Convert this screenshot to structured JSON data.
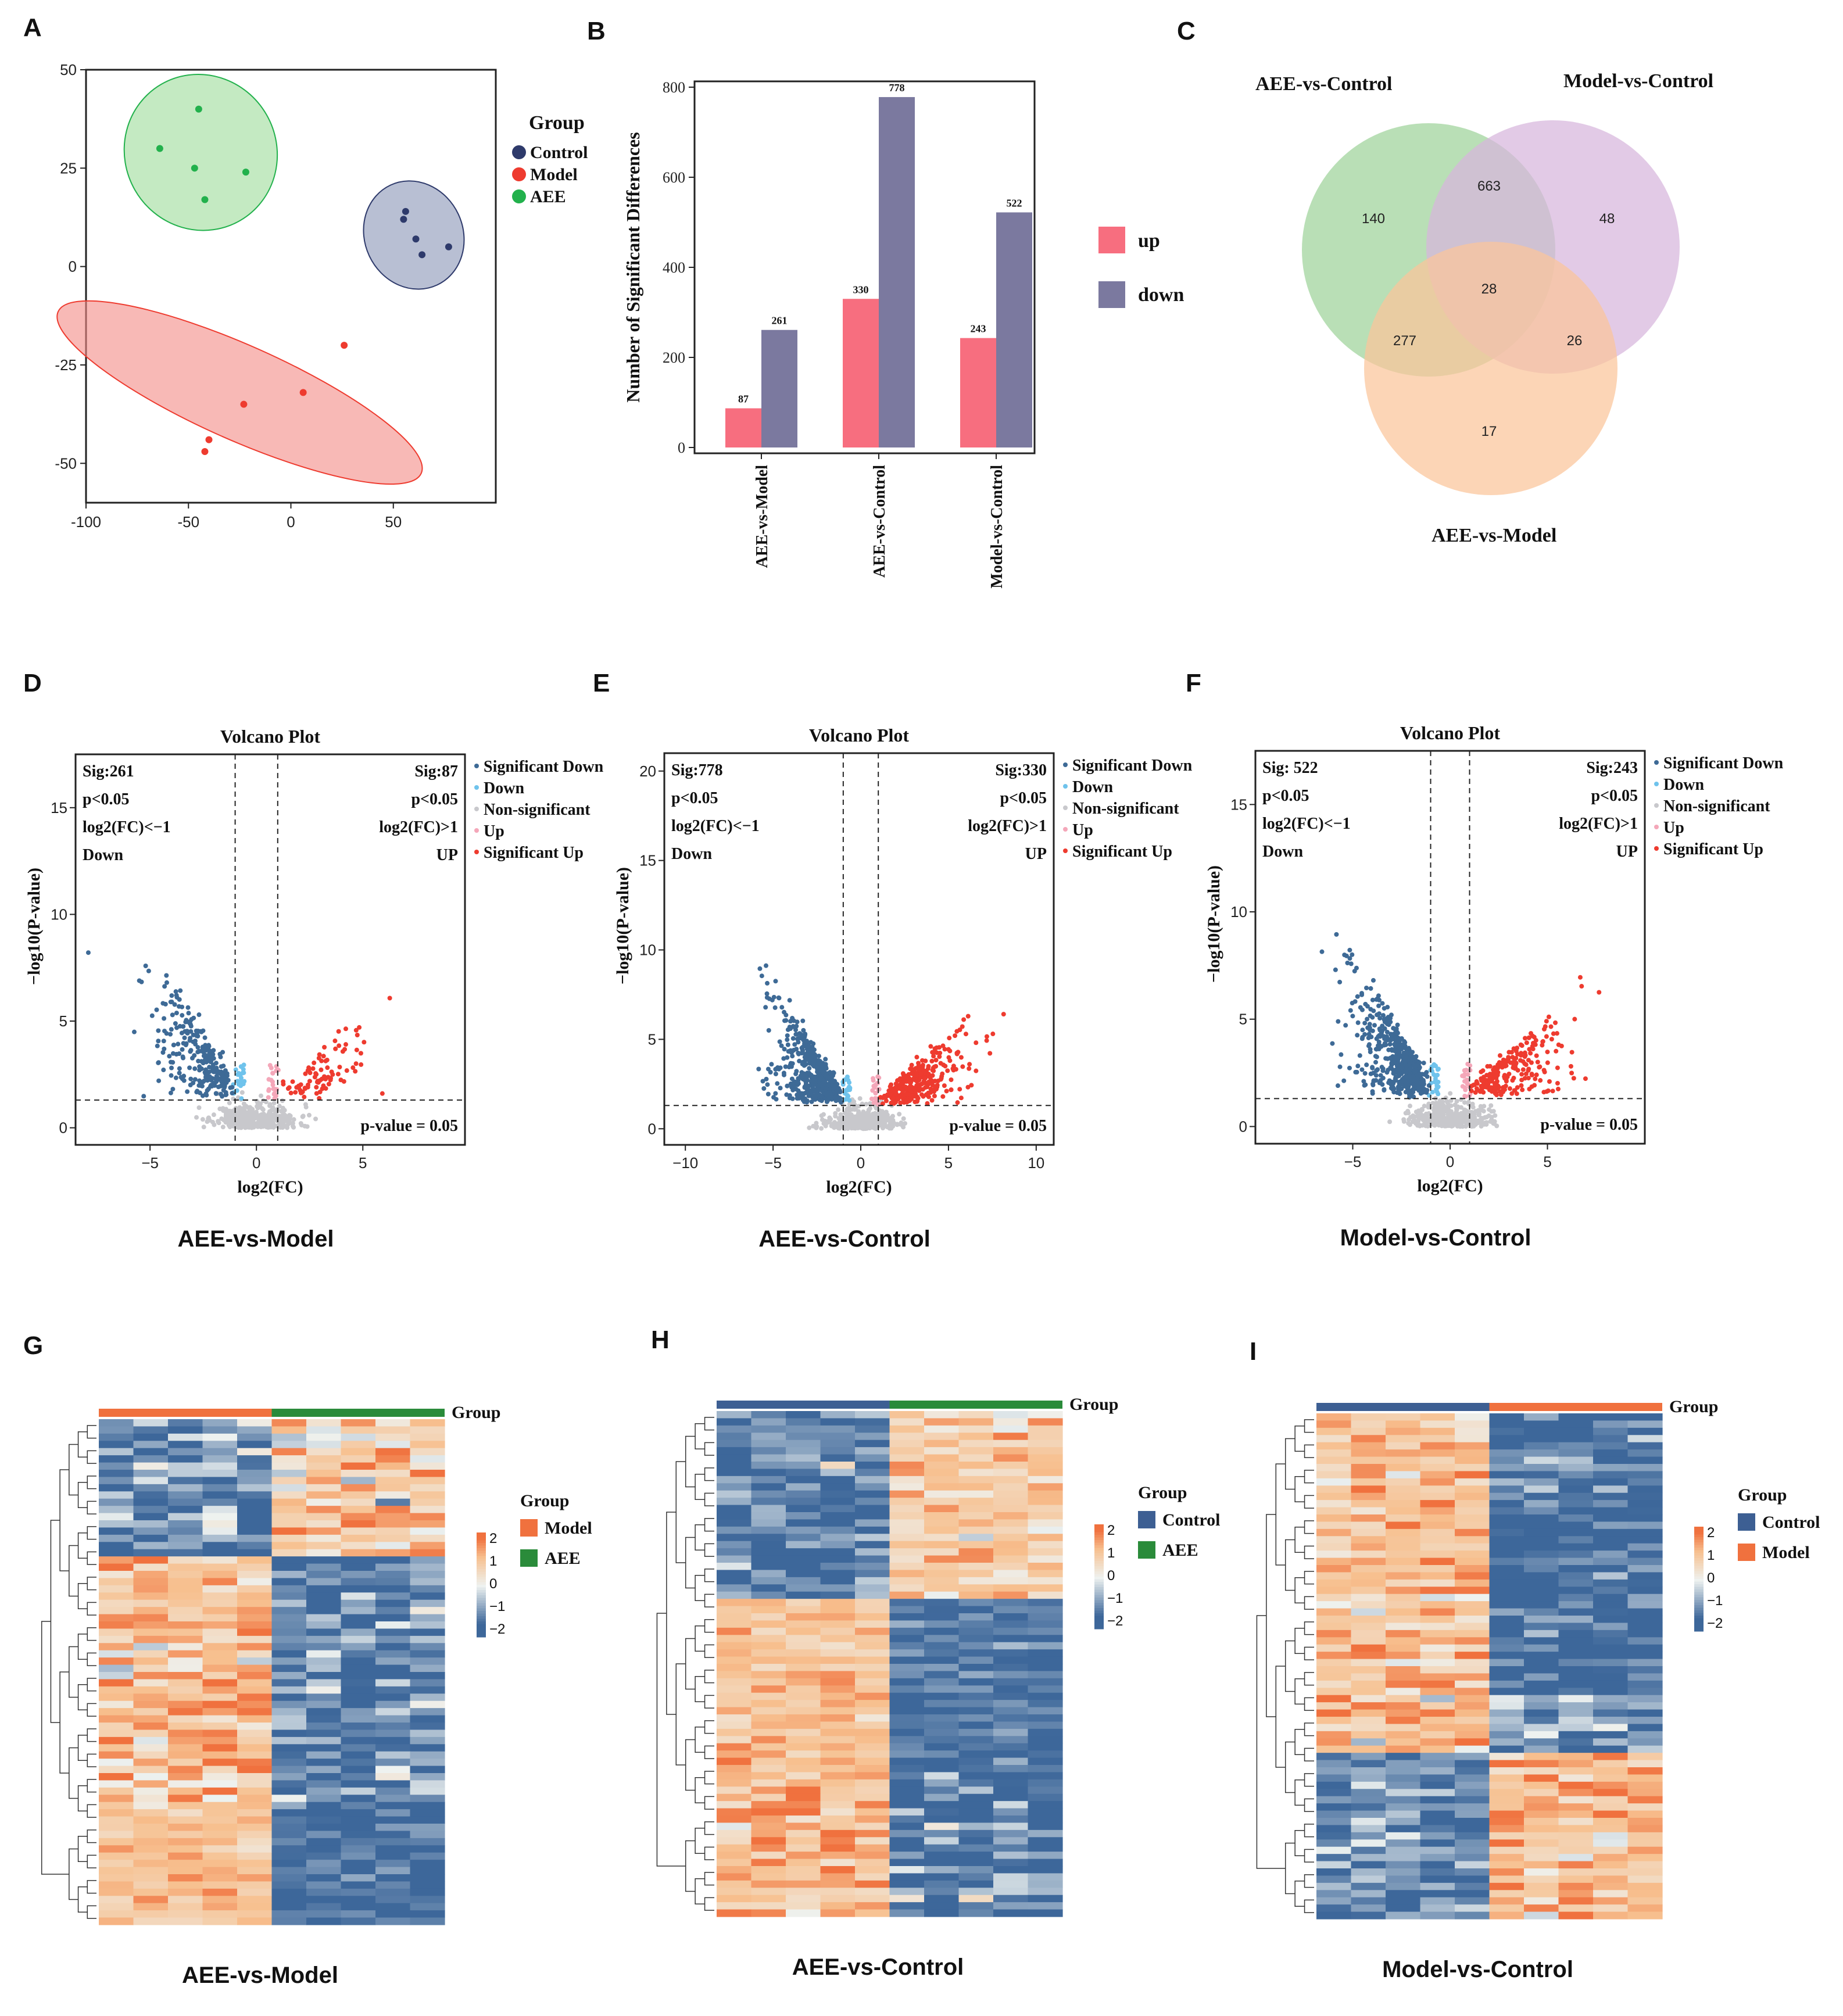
{
  "panel_letters": [
    "A",
    "B",
    "C",
    "D",
    "E",
    "F",
    "G",
    "H",
    "I"
  ],
  "colors": {
    "control": "#2e3a6b",
    "model": "#ee3b2f",
    "aee": "#22b14c",
    "up_bar": "#f76e7f",
    "down_bar": "#7b799f",
    "venn_aee": "#9ed39a",
    "venn_model_ctrl": "#d7b5dd",
    "venn_aee_model": "#fbc59a",
    "sig_down": "#3e6a96",
    "down": "#6fc3ec",
    "nonsig": "#c8c8cc",
    "up": "#f4a7b9",
    "sig_up": "#ee3b2f",
    "hm_low": "#3d679a",
    "hm_mid": "#eef2f0",
    "hm_high": "#f0713e",
    "hm_warm": "#f7c08f"
  },
  "chart_data": [
    {
      "panel": "A",
      "type": "scatter",
      "xlim": [
        -100,
        100
      ],
      "ylim": [
        -60,
        50
      ],
      "xticks": [
        "-100",
        "-50",
        "0",
        "50"
      ],
      "yticks": [
        "50",
        "25",
        "0",
        "-25",
        "-50"
      ],
      "legend_title": "Group",
      "legend": [
        "Control",
        "Model",
        "AEE"
      ],
      "series": [
        {
          "name": "Control",
          "points": [
            [
              55,
              12
            ],
            [
              56,
              14
            ],
            [
              61,
              7
            ],
            [
              64,
              3
            ],
            [
              77,
              5
            ]
          ],
          "ellipse": {
            "cx": 60,
            "cy": 8,
            "rx": 24,
            "ry": 14,
            "angle": -25
          }
        },
        {
          "name": "Model",
          "points": [
            [
              -42,
              -47
            ],
            [
              -40,
              -44
            ],
            [
              -23,
              -35
            ],
            [
              6,
              -32
            ],
            [
              26,
              -20
            ]
          ],
          "ellipse": {
            "cx": -25,
            "cy": -32,
            "rx": 97,
            "ry": 12,
            "angle": 24
          }
        },
        {
          "name": "AEE",
          "points": [
            [
              -64,
              30
            ],
            [
              -45,
              40
            ],
            [
              -47,
              25
            ],
            [
              -42,
              17
            ],
            [
              -22,
              24
            ]
          ],
          "ellipse": {
            "cx": -44,
            "cy": 29,
            "rx": 37,
            "ry": 20,
            "angle": -30
          }
        }
      ]
    },
    {
      "panel": "B",
      "type": "bar",
      "ylabel": "Number of Significant Differences",
      "ylim": [
        0,
        800
      ],
      "yticks": [
        "0",
        "200",
        "400",
        "600",
        "800"
      ],
      "categories": [
        "AEE-vs-Model",
        "AEE-vs-Control",
        "Model-vs-Control"
      ],
      "series": [
        {
          "name": "up",
          "values": [
            87,
            330,
            243
          ]
        },
        {
          "name": "down",
          "values": [
            261,
            778,
            522
          ]
        }
      ],
      "legend": [
        "up",
        "down"
      ]
    },
    {
      "panel": "C",
      "type": "venn",
      "sets": [
        "AEE-vs-Control",
        "Model-vs-Control",
        "AEE-vs-Model"
      ],
      "regions": {
        "aee_only": 140,
        "aee_model_ctrl": 663,
        "model_ctrl_only": 48,
        "center": 28,
        "aee_aeemodel": 277,
        "modelctrl_aeemodel": 26,
        "aeemodel_only": 17
      }
    },
    {
      "panel": "D",
      "type": "scatter",
      "title": "Volcano Plot",
      "caption": "AEE-vs-Model",
      "xlabel": "log2(FC)",
      "ylabel": "−log10(P-value)",
      "xlim": [
        -8.5,
        9.8
      ],
      "ylim": [
        -0.8,
        17.5
      ],
      "xticks": [
        -5,
        0,
        5
      ],
      "yticks": [
        0,
        5,
        10,
        15
      ],
      "sig_left": [
        "Sig:261",
        "p<0.05",
        "log2(FC)<−1",
        "Down"
      ],
      "sig_right": [
        "Sig:87",
        "p<0.05",
        "log2(FC)>1",
        "UP"
      ],
      "pline_label": "p-value = 0.05",
      "legend": [
        "Significant Down",
        "Down",
        "Non-significant",
        "Up",
        "Significant Up"
      ],
      "n_sigdown": 261,
      "n_sigup": 87
    },
    {
      "panel": "E",
      "type": "scatter",
      "title": "Volcano Plot",
      "caption": "AEE-vs-Control",
      "xlabel": "log2(FC)",
      "ylabel": "−log10(P-value)",
      "xlim": [
        -11.2,
        11
      ],
      "ylim": [
        -0.9,
        21
      ],
      "xticks": [
        -10,
        -5,
        0,
        5,
        10
      ],
      "yticks": [
        0,
        5,
        10,
        15,
        20
      ],
      "sig_left": [
        "Sig:778",
        "p<0.05",
        "log2(FC)<−1",
        "Down"
      ],
      "sig_right": [
        "Sig:330",
        "p<0.05",
        "log2(FC)>1",
        "UP"
      ],
      "pline_label": "p-value = 0.05",
      "legend": [
        "Significant Down",
        "Down",
        "Non-significant",
        "Up",
        "Significant Up"
      ],
      "n_sigdown": 778,
      "n_sigup": 330
    },
    {
      "panel": "F",
      "type": "scatter",
      "title": "Volcano Plot",
      "caption": "Model-vs-Control",
      "xlabel": "log2(FC)",
      "ylabel": "−log10(P-value)",
      "xlim": [
        -10,
        10
      ],
      "ylim": [
        -0.8,
        17.5
      ],
      "xticks": [
        -5,
        0,
        5
      ],
      "yticks": [
        0,
        5,
        10,
        15
      ],
      "sig_left": [
        "Sig: 522",
        "p<0.05",
        "log2(FC)<−1",
        "Down"
      ],
      "sig_right": [
        "Sig:243",
        "p<0.05",
        "log2(FC)>1",
        "UP"
      ],
      "pline_label": "p-value = 0.05",
      "legend": [
        "Significant Down",
        "Down",
        "Non-significant",
        "Up",
        "Significant Up"
      ],
      "n_sigdown": 522,
      "n_sigup": 243
    },
    {
      "panel": "G",
      "type": "heatmap",
      "caption": "AEE-vs-Model",
      "annotation_label": "Group",
      "legend_title": "Group",
      "groups": [
        "Model",
        "AEE"
      ],
      "group_colors": [
        "#f0713e",
        "#2a8b3a"
      ],
      "scale_ticks": [
        "2",
        "1",
        "0",
        "−1",
        "−2"
      ]
    },
    {
      "panel": "H",
      "type": "heatmap",
      "caption": "AEE-vs-Control",
      "annotation_label": "Group",
      "legend_title": "Group",
      "groups": [
        "Control",
        "AEE"
      ],
      "group_colors": [
        "#3d5f93",
        "#2a8b3a"
      ],
      "scale_ticks": [
        "2",
        "1",
        "0",
        "−1",
        "−2"
      ]
    },
    {
      "panel": "I",
      "type": "heatmap",
      "caption": "Model-vs-Control",
      "annotation_label": "Group",
      "legend_title": "Group",
      "groups": [
        "Control",
        "Model"
      ],
      "group_colors": [
        "#3d5f93",
        "#f0713e"
      ],
      "scale_ticks": [
        "2",
        "1",
        "0",
        "−1",
        "−2"
      ]
    }
  ]
}
